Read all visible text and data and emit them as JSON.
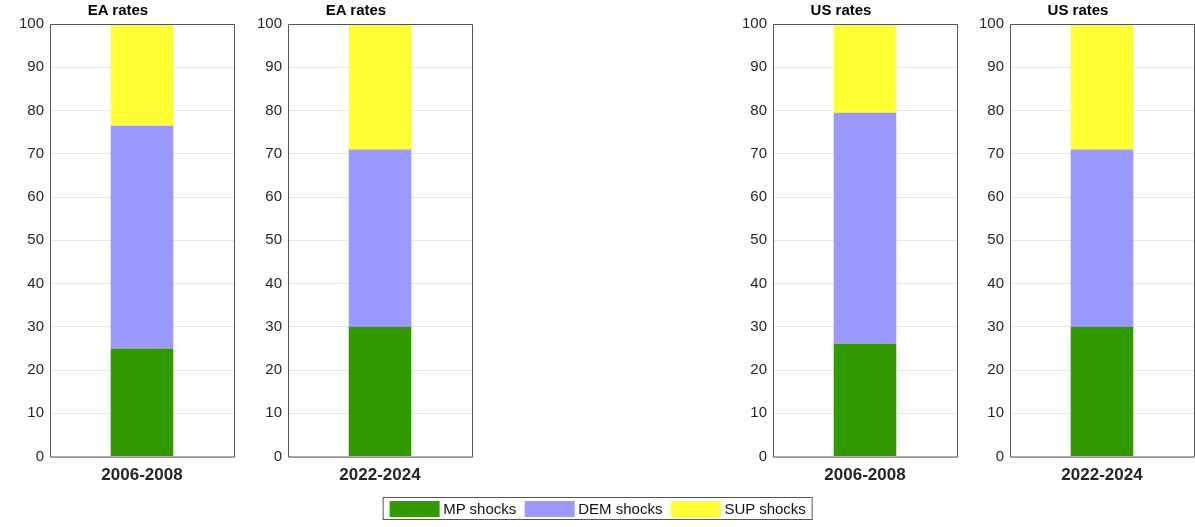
{
  "chart_data": [
    {
      "type": "bar",
      "title": "EA rates",
      "categories": [
        "2006-2008"
      ],
      "stacked": true,
      "ylim": [
        0,
        100
      ],
      "yticks": [
        0,
        10,
        20,
        30,
        40,
        50,
        60,
        70,
        80,
        90,
        100
      ],
      "grid": "y",
      "legend": "bottom",
      "series": [
        {
          "name": "MP shocks",
          "color": "#339900",
          "values": [
            25
          ]
        },
        {
          "name": "DEM shocks",
          "color": "#9999ff",
          "values": [
            51.5
          ]
        },
        {
          "name": "SUP shocks",
          "color": "#ffff33",
          "values": [
            23.5
          ]
        }
      ]
    },
    {
      "type": "bar",
      "title": "EA rates",
      "categories": [
        "2022-2024"
      ],
      "stacked": true,
      "ylim": [
        0,
        100
      ],
      "yticks": [
        0,
        10,
        20,
        30,
        40,
        50,
        60,
        70,
        80,
        90,
        100
      ],
      "grid": "y",
      "series": [
        {
          "color": "#339900",
          "values": [
            30
          ]
        },
        {
          "color": "#9999ff",
          "values": [
            41
          ]
        },
        {
          "color": "#ffff33",
          "values": [
            29
          ]
        }
      ]
    },
    {
      "type": "bar",
      "title": "US rates",
      "categories": [
        "2006-2008"
      ],
      "stacked": true,
      "ylim": [
        0,
        100
      ],
      "yticks": [
        0,
        10,
        20,
        30,
        40,
        50,
        60,
        70,
        80,
        90,
        100
      ],
      "grid": "y",
      "series": [
        {
          "color": "#339900",
          "values": [
            26
          ]
        },
        {
          "color": "#9999ff",
          "values": [
            53.5
          ]
        },
        {
          "color": "#ffff33",
          "values": [
            20.5
          ]
        }
      ]
    },
    {
      "type": "bar",
      "title": "US rates",
      "categories": [
        "2022-2024"
      ],
      "stacked": true,
      "ylim": [
        0,
        100
      ],
      "yticks": [
        0,
        10,
        20,
        30,
        40,
        50,
        60,
        70,
        80,
        90,
        100
      ],
      "grid": "y",
      "series": [
        {
          "color": "#339900",
          "values": [
            30
          ]
        },
        {
          "color": "#9999ff",
          "values": [
            41
          ]
        },
        {
          "color": "#ffff33",
          "values": [
            29
          ]
        }
      ]
    }
  ]
}
